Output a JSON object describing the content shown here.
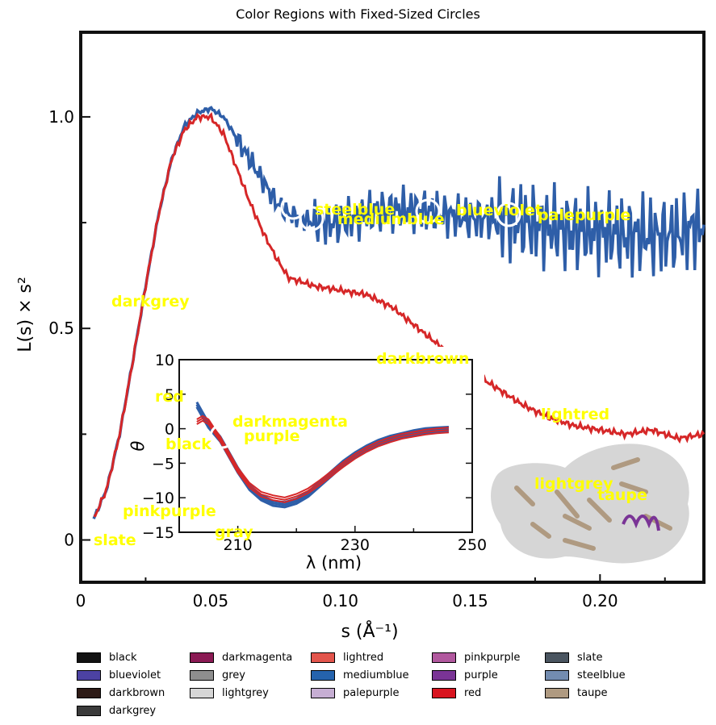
{
  "chart_data": {
    "type": "line",
    "title": "Color Regions with Fixed-Sized Circles",
    "xlabel": "s (Å⁻¹)",
    "ylabel": "L(s) × s²",
    "xlim": [
      0,
      0.24
    ],
    "ylim": [
      -0.1,
      1.2
    ],
    "xticks": [
      "0",
      "0.05",
      "0.10",
      "0.15",
      "0.20"
    ],
    "yticks": [
      "0",
      "0.5",
      "1.0"
    ],
    "series": [
      {
        "color": "#2e5ea8",
        "x": [
          0.005,
          0.01,
          0.015,
          0.02,
          0.025,
          0.03,
          0.035,
          0.04,
          0.045,
          0.05,
          0.055,
          0.06,
          0.065,
          0.07,
          0.075,
          0.08,
          0.085,
          0.09,
          0.1,
          0.11,
          0.12,
          0.13,
          0.14,
          0.15,
          0.16,
          0.17,
          0.18,
          0.19,
          0.2,
          0.21,
          0.22,
          0.23,
          0.24
        ],
        "y": [
          0.05,
          0.12,
          0.25,
          0.42,
          0.6,
          0.77,
          0.9,
          0.98,
          1.01,
          1.02,
          1.0,
          0.95,
          0.9,
          0.85,
          0.8,
          0.77,
          0.76,
          0.75,
          0.75,
          0.77,
          0.78,
          0.78,
          0.77,
          0.76,
          0.76,
          0.75,
          0.74,
          0.73,
          0.73,
          0.72,
          0.72,
          0.72,
          0.75
        ]
      },
      {
        "color": "#d62728",
        "x": [
          0.005,
          0.01,
          0.015,
          0.02,
          0.025,
          0.03,
          0.035,
          0.04,
          0.045,
          0.05,
          0.055,
          0.06,
          0.065,
          0.07,
          0.075,
          0.08,
          0.09,
          0.1,
          0.11,
          0.12,
          0.13,
          0.14,
          0.15,
          0.16,
          0.17,
          0.18,
          0.19,
          0.2,
          0.21,
          0.22,
          0.23,
          0.24
        ],
        "y": [
          0.05,
          0.12,
          0.25,
          0.42,
          0.6,
          0.77,
          0.9,
          0.97,
          1.0,
          1.0,
          0.96,
          0.88,
          0.8,
          0.73,
          0.67,
          0.62,
          0.6,
          0.59,
          0.58,
          0.55,
          0.5,
          0.45,
          0.4,
          0.36,
          0.32,
          0.29,
          0.27,
          0.26,
          0.25,
          0.26,
          0.24,
          0.25
        ]
      }
    ],
    "inset": {
      "xlabel": "λ (nm)",
      "ylabel": "θ",
      "xlim": [
        200,
        250
      ],
      "ylim": [
        -15,
        10
      ],
      "xticks": [
        "210",
        "230",
        "250"
      ],
      "yticks": [
        "10",
        "5",
        "0",
        "−5",
        "−10",
        "−15"
      ],
      "series": [
        {
          "color": "#2e5ea8",
          "x": [
            203,
            204,
            205,
            206,
            207,
            208,
            210,
            212,
            214,
            216,
            218,
            220,
            222,
            224,
            226,
            228,
            230,
            232,
            234,
            236,
            238,
            240,
            242,
            244,
            246
          ],
          "y": [
            3.5,
            2.0,
            0.5,
            -0.5,
            -1.5,
            -3.0,
            -6.0,
            -8.5,
            -10.0,
            -10.8,
            -11.0,
            -10.5,
            -9.5,
            -8.0,
            -6.5,
            -5.0,
            -3.8,
            -2.8,
            -2.0,
            -1.4,
            -1.0,
            -0.6,
            -0.3,
            -0.2,
            -0.1
          ]
        },
        {
          "color": "#d62728",
          "x": [
            203,
            204,
            205,
            206,
            207,
            208,
            210,
            212,
            214,
            216,
            218,
            220,
            222,
            224,
            226,
            228,
            230,
            232,
            234,
            236,
            238,
            240,
            242,
            244,
            246
          ],
          "y": [
            1.0,
            1.5,
            1.0,
            -0.3,
            -1.5,
            -3.0,
            -6.0,
            -8.2,
            -9.5,
            -10.0,
            -10.3,
            -9.8,
            -9.0,
            -7.8,
            -6.5,
            -5.2,
            -4.0,
            -3.0,
            -2.2,
            -1.6,
            -1.1,
            -0.8,
            -0.5,
            -0.3,
            -0.2
          ]
        }
      ]
    },
    "region_labels": [
      {
        "text": "steelblue"
      },
      {
        "text": "mediumblue"
      },
      {
        "text": "blueviolet"
      },
      {
        "text": "palepurple"
      },
      {
        "text": "darkgrey"
      },
      {
        "text": "darkbrown"
      },
      {
        "text": "red"
      },
      {
        "text": "darkmagenta"
      },
      {
        "text": "purple"
      },
      {
        "text": "black"
      },
      {
        "text": "lightred"
      },
      {
        "text": "lightgrey"
      },
      {
        "text": "taupe"
      },
      {
        "text": "pinkpurple"
      },
      {
        "text": "slate"
      },
      {
        "text": "gray"
      }
    ],
    "legend": {
      "placement": "bottom",
      "entries": [
        {
          "label": "black",
          "color": "#121212"
        },
        {
          "label": "darkmagenta",
          "color": "#8b1a54"
        },
        {
          "label": "lightred",
          "color": "#e3554c"
        },
        {
          "label": "pinkpurple",
          "color": "#b1589e"
        },
        {
          "label": "slate",
          "color": "#4a5560"
        },
        {
          "label": "blueviolet",
          "color": "#4c42a3"
        },
        {
          "label": "grey",
          "color": "#8e8e8e"
        },
        {
          "label": "mediumblue",
          "color": "#2563ad"
        },
        {
          "label": "purple",
          "color": "#7a3496"
        },
        {
          "label": "steelblue",
          "color": "#738cb0"
        },
        {
          "label": "darkbrown",
          "color": "#2e1b16"
        },
        {
          "label": "lightgrey",
          "color": "#d6d6d6"
        },
        {
          "label": "palepurple",
          "color": "#c6aed3"
        },
        {
          "label": "red",
          "color": "#d8141f"
        },
        {
          "label": "taupe",
          "color": "#af9a81"
        },
        {
          "label": "darkgrey",
          "color": "#3b3b3b"
        }
      ]
    }
  }
}
